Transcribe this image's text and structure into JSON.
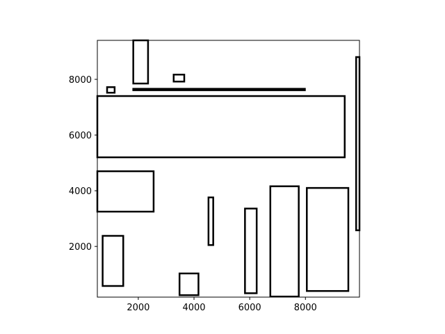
{
  "chart_data": {
    "type": "rectangles",
    "title": "",
    "xlabel": "",
    "ylabel": "",
    "xlim": [
      530,
      9940
    ],
    "ylim": [
      180,
      9400
    ],
    "xticks": [
      2000,
      4000,
      6000,
      8000
    ],
    "yticks": [
      2000,
      4000,
      6000,
      8000
    ],
    "grid": false,
    "legend": "none",
    "rectangles": [
      {
        "x0": 530,
        "y0": 5200,
        "x1": 9410,
        "y1": 7400
      },
      {
        "x0": 530,
        "y0": 3250,
        "x1": 2550,
        "y1": 4700
      },
      {
        "x0": 720,
        "y0": 580,
        "x1": 1460,
        "y1": 2380
      },
      {
        "x0": 1820,
        "y0": 7850,
        "x1": 2350,
        "y1": 9400
      },
      {
        "x0": 880,
        "y0": 7520,
        "x1": 1150,
        "y1": 7720
      },
      {
        "x0": 3270,
        "y0": 7920,
        "x1": 3650,
        "y1": 8170
      },
      {
        "x0": 1820,
        "y0": 7610,
        "x1": 7980,
        "y1": 7660
      },
      {
        "x0": 3480,
        "y0": 250,
        "x1": 4160,
        "y1": 1030
      },
      {
        "x0": 4520,
        "y0": 2050,
        "x1": 4690,
        "y1": 3760
      },
      {
        "x0": 5830,
        "y0": 320,
        "x1": 6250,
        "y1": 3360
      },
      {
        "x0": 6740,
        "y0": 200,
        "x1": 7760,
        "y1": 4160
      },
      {
        "x0": 8050,
        "y0": 400,
        "x1": 9540,
        "y1": 4100
      },
      {
        "x0": 9820,
        "y0": 2580,
        "x1": 9940,
        "y1": 8800
      }
    ],
    "line_color": "#000000",
    "fill": "none"
  }
}
